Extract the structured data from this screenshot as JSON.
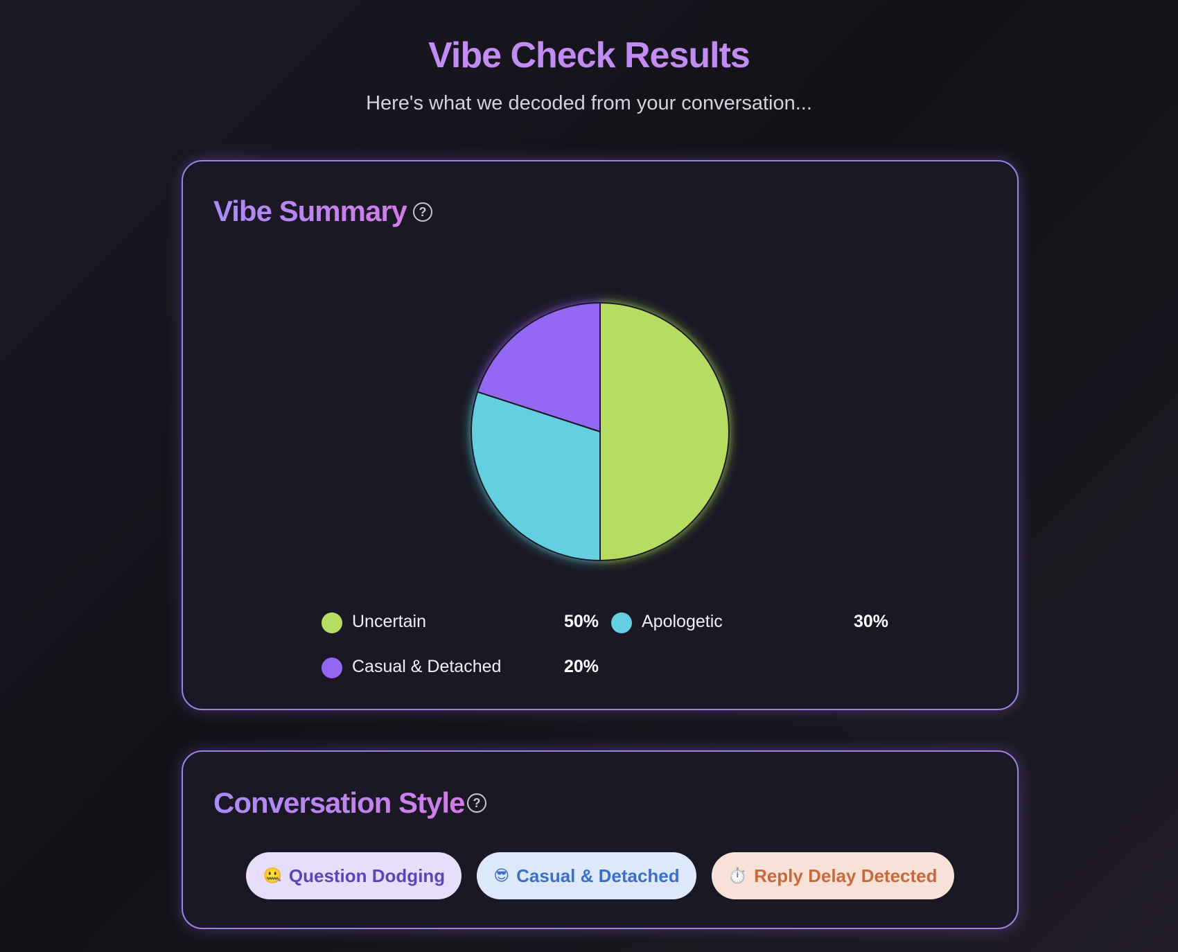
{
  "header": {
    "title": "Vibe Check Results",
    "subtitle": "Here's what we decoded from your conversation..."
  },
  "summary": {
    "title": "Vibe Summary",
    "help_icon": "question-circle-icon",
    "legend": [
      {
        "label": "Uncertain",
        "value": "50%"
      },
      {
        "label": "Apologetic",
        "value": "30%"
      },
      {
        "label": "Casual & Detached",
        "value": "20%"
      }
    ]
  },
  "chart_data": {
    "type": "pie",
    "categories": [
      "Uncertain",
      "Apologetic",
      "Casual & Detached"
    ],
    "values": [
      50,
      30,
      20
    ],
    "colors": [
      "#b5dd62",
      "#63d0e2",
      "#9367f2"
    ],
    "title": "",
    "legend_position": "bottom"
  },
  "style": {
    "title": "Conversation Style",
    "help_icon": "question-circle-icon",
    "chips": [
      {
        "emoji": "🤐",
        "label": "Question Dodging",
        "bg": "#e6defa",
        "fg": "#5b45b8"
      },
      {
        "emoji": "😎",
        "label": "Casual & Detached",
        "bg": "#dde8fa",
        "fg": "#3c70c8"
      },
      {
        "emoji": "⏱️",
        "label": "Reply Delay Detected",
        "bg": "#f8e2d8",
        "fg": "#c8683e"
      }
    ]
  }
}
